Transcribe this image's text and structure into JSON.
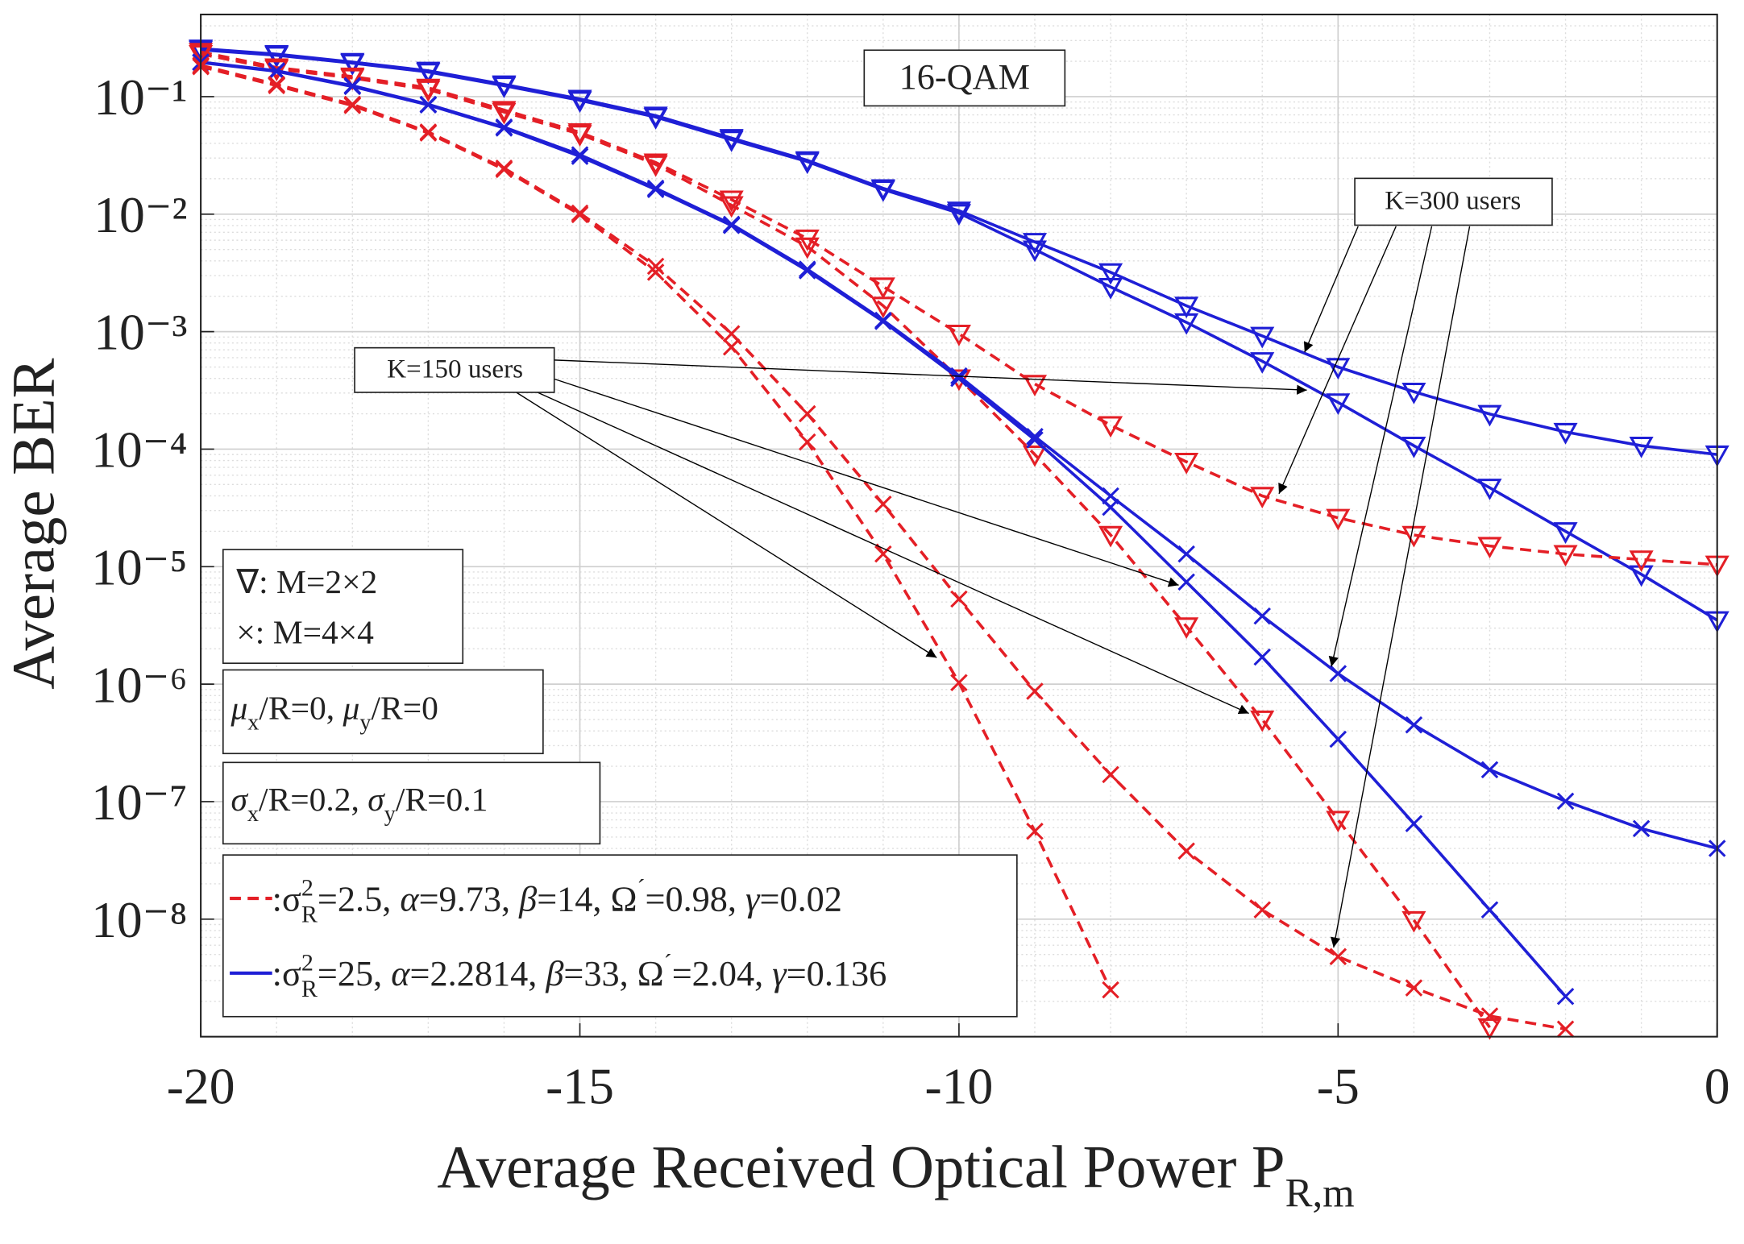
{
  "chart_data": {
    "type": "line",
    "x_label": {
      "parts": [
        {
          "text": "Average Received Optical Power P"
        },
        {
          "text": "R,m",
          "style": "sub"
        }
      ]
    },
    "y_label": "Average BER",
    "log_y": true,
    "grid": true,
    "minor_grid": true,
    "xlim": [
      -20,
      0
    ],
    "xticks": [
      -20,
      -15,
      -10,
      -5,
      0
    ],
    "ylim": [
      1e-09,
      0.5
    ],
    "yticks": [
      {
        "value": 1e-08,
        "label": "10⁻⁸"
      },
      {
        "value": 1e-07,
        "label": "10⁻⁷"
      },
      {
        "value": 1e-06,
        "label": "10⁻⁶"
      },
      {
        "value": 1e-05,
        "label": "10⁻⁵"
      },
      {
        "value": 0.0001,
        "label": "10⁻⁴"
      },
      {
        "value": 0.001,
        "label": "10⁻³"
      },
      {
        "value": 0.01,
        "label": "10⁻²"
      },
      {
        "value": 0.1,
        "label": "10⁻¹"
      }
    ],
    "x": [
      -20,
      -19,
      -18,
      -17,
      -16,
      -15,
      -14,
      -13,
      -12,
      -11,
      -10,
      -9,
      -8,
      -7,
      -6,
      -5,
      -4,
      -3,
      -2,
      -1,
      0
    ],
    "series": [
      {
        "color": "#1f1fd6",
        "dash": false,
        "marker": "triangle",
        "values": [
          0.256,
          0.23,
          0.197,
          0.166,
          0.127,
          0.0957,
          0.0689,
          0.0444,
          0.0287,
          0.0166,
          0.0107,
          0.0058,
          0.0032,
          0.00166,
          0.00092,
          0.0005,
          0.000308,
          0.000199,
          0.00014,
          0.000107,
          9e-05
        ]
      },
      {
        "color": "#1f1fd6",
        "dash": false,
        "marker": "triangle",
        "values": [
          0.25,
          0.225,
          0.193,
          0.162,
          0.124,
          0.093,
          0.067,
          0.043,
          0.028,
          0.0162,
          0.0102,
          0.005,
          0.0024,
          0.0012,
          0.00056,
          0.00025,
          0.000107,
          4.7e-05,
          2e-05,
          8.6e-06,
          3.5e-06
        ]
      },
      {
        "color": "#e41f26",
        "dash": true,
        "marker": "triangle",
        "values": [
          0.24,
          0.177,
          0.148,
          0.119,
          0.0769,
          0.0497,
          0.0275,
          0.0133,
          0.0062,
          0.00242,
          0.00096,
          0.000359,
          0.00016,
          7.8e-05,
          4e-05,
          2.6e-05,
          1.86e-05,
          1.5e-05,
          1.28e-05,
          1.15e-05,
          1.04e-05
        ]
      },
      {
        "color": "#e41f26",
        "dash": true,
        "marker": "triangle",
        "values": [
          0.23,
          0.172,
          0.144,
          0.115,
          0.074,
          0.048,
          0.0265,
          0.0119,
          0.0053,
          0.00166,
          0.0004,
          9e-05,
          1.86e-05,
          3.1e-06,
          5e-07,
          7e-08,
          9.8e-09,
          1.2e-09,
          null,
          null,
          null
        ]
      },
      {
        "color": "#1f1fd6",
        "dash": false,
        "marker": "x",
        "values": [
          0.197,
          0.166,
          0.124,
          0.086,
          0.055,
          0.032,
          0.0166,
          0.0082,
          0.0034,
          0.00125,
          0.00042,
          0.000128,
          4e-05,
          1.28e-05,
          3.8e-06,
          1.23e-06,
          4.5e-07,
          1.87e-07,
          1.01e-07,
          5.9e-08,
          4e-08
        ]
      },
      {
        "color": "#1f1fd6",
        "dash": false,
        "marker": "x",
        "values": [
          0.195,
          0.164,
          0.122,
          0.085,
          0.054,
          0.031,
          0.0162,
          0.008,
          0.0033,
          0.00122,
          0.0004,
          0.00012,
          3.2e-05,
          7.4e-06,
          1.7e-06,
          3.4e-07,
          6.5e-08,
          1.2e-08,
          2.2e-09,
          null,
          null
        ]
      },
      {
        "color": "#e41f26",
        "dash": true,
        "marker": "x",
        "values": [
          0.185,
          0.127,
          0.086,
          0.05,
          0.0246,
          0.0102,
          0.0036,
          0.00096,
          0.0002,
          3.4e-05,
          5.3e-06,
          8.7e-07,
          1.7e-07,
          3.8e-08,
          1.2e-08,
          4.8e-09,
          2.6e-09,
          1.5e-09,
          1.16e-09,
          null,
          null
        ]
      },
      {
        "color": "#e41f26",
        "dash": true,
        "marker": "x",
        "values": [
          0.18,
          0.124,
          0.084,
          0.049,
          0.024,
          0.0099,
          0.0032,
          0.00074,
          0.000115,
          1.28e-05,
          1.03e-06,
          5.6e-08,
          2.5e-09,
          null,
          null,
          null,
          null,
          null,
          null,
          null,
          null
        ]
      }
    ],
    "annotations": [
      "16-QAM",
      "K=300 users",
      "K=150 users"
    ],
    "marker_key": [
      "∇: M=2×2",
      "×: M=4×4"
    ],
    "parameters": [
      {
        "parts": [
          {
            "text": "μ",
            "style": "italic"
          },
          {
            "text": "x",
            "style": "sub"
          },
          {
            "text": "/R=0, "
          },
          {
            "text": "μ",
            "style": "italic"
          },
          {
            "text": "y",
            "style": "sub"
          },
          {
            "text": "/R=0"
          }
        ]
      },
      {
        "parts": [
          {
            "text": "σ",
            "style": "italic"
          },
          {
            "text": "x",
            "style": "sub"
          },
          {
            "text": "/R=0.2, "
          },
          {
            "text": "σ",
            "style": "italic"
          },
          {
            "text": "y",
            "style": "sub"
          },
          {
            "text": "/R=0.1"
          }
        ]
      }
    ],
    "legend": [
      {
        "color": "#e41f26",
        "dash": true,
        "parts": [
          {
            "text": ":σ"
          },
          {
            "text": "2",
            "style": "sup"
          },
          {
            "text": "R",
            "style": "sub"
          },
          {
            "text": "=2.5, "
          },
          {
            "text": "α",
            "style": "italic"
          },
          {
            "text": "=9.73, "
          },
          {
            "text": "β",
            "style": "italic"
          },
          {
            "text": "=14, Ω"
          },
          {
            "text": "´",
            "style": "sup"
          },
          {
            "text": "=0.98, "
          },
          {
            "text": "γ",
            "style": "italic"
          },
          {
            "text": "=0.02"
          }
        ]
      },
      {
        "color": "#1f1fd6",
        "dash": false,
        "parts": [
          {
            "text": ":σ"
          },
          {
            "text": "2",
            "style": "sup"
          },
          {
            "text": "R",
            "style": "sub"
          },
          {
            "text": "=25, "
          },
          {
            "text": "α",
            "style": "italic"
          },
          {
            "text": "=2.2814, "
          },
          {
            "text": "β",
            "style": "italic"
          },
          {
            "text": "=33, Ω"
          },
          {
            "text": "´",
            "style": "sup"
          },
          {
            "text": "=2.04, "
          },
          {
            "text": "γ",
            "style": "italic"
          },
          {
            "text": "=0.136"
          }
        ]
      }
    ]
  }
}
